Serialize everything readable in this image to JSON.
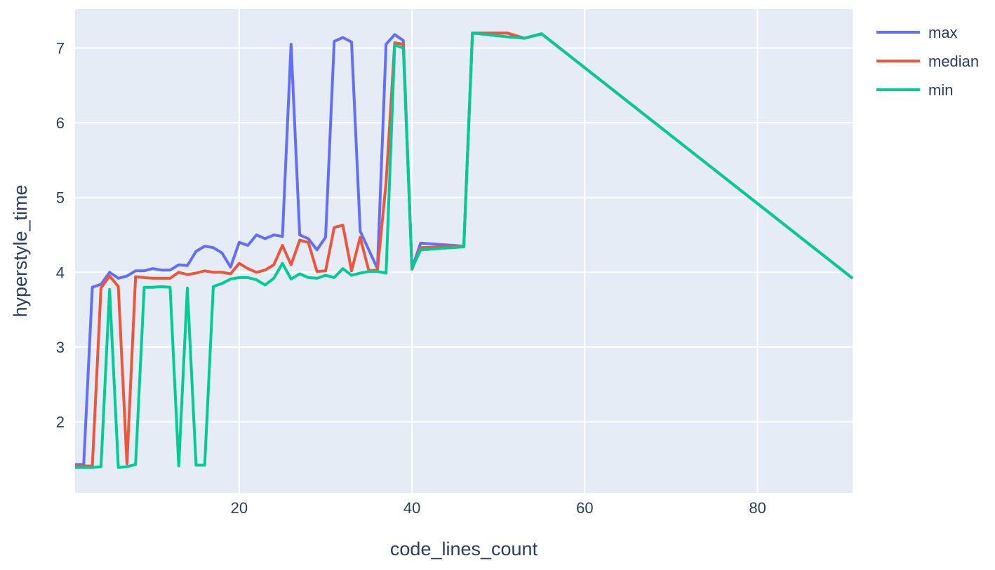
{
  "chart_data": {
    "type": "line",
    "xlabel": "code_lines_count",
    "ylabel": "hyperstyle_time",
    "xlim": [
      1,
      91
    ],
    "ylim": [
      1.05,
      7.52
    ],
    "x_ticks": [
      20,
      40,
      60,
      80
    ],
    "y_ticks": [
      2,
      3,
      4,
      5,
      6,
      7
    ],
    "grid": true,
    "legend_position": "top-right",
    "background_color": "#e5ecf6",
    "grid_color": "#ffffff",
    "series": [
      {
        "name": "max",
        "color": "#636efa",
        "x": [
          1,
          2,
          3,
          4,
          5,
          6,
          7,
          8,
          9,
          10,
          11,
          12,
          13,
          14,
          15,
          16,
          17,
          18,
          19,
          20,
          21,
          22,
          23,
          24,
          25,
          26,
          27,
          28,
          29,
          30,
          31,
          32,
          33,
          34,
          35,
          36,
          37,
          38,
          39,
          40,
          41,
          46,
          47,
          51,
          53,
          55,
          91
        ],
        "y": [
          1.43,
          1.43,
          3.8,
          3.84,
          4.0,
          3.92,
          3.95,
          4.02,
          4.02,
          4.05,
          4.03,
          4.03,
          4.1,
          4.09,
          4.28,
          4.35,
          4.33,
          4.26,
          4.07,
          4.4,
          4.36,
          4.5,
          4.45,
          4.5,
          4.48,
          7.05,
          4.5,
          4.45,
          4.3,
          4.47,
          7.09,
          7.14,
          7.08,
          4.55,
          4.3,
          4.05,
          7.05,
          7.18,
          7.1,
          4.05,
          4.39,
          4.35,
          7.2,
          7.2,
          7.13,
          7.19,
          3.92
        ]
      },
      {
        "name": "median",
        "color": "#ef553b",
        "x": [
          1,
          2,
          3,
          4,
          5,
          6,
          7,
          8,
          9,
          10,
          11,
          12,
          13,
          14,
          15,
          16,
          17,
          18,
          19,
          20,
          21,
          22,
          23,
          24,
          25,
          26,
          27,
          28,
          29,
          30,
          31,
          32,
          33,
          34,
          35,
          36,
          37,
          38,
          39,
          40,
          41,
          46,
          47,
          51,
          53,
          55,
          91
        ],
        "y": [
          1.41,
          1.41,
          1.41,
          3.79,
          3.95,
          3.81,
          1.44,
          3.94,
          3.93,
          3.92,
          3.92,
          3.92,
          4.0,
          3.97,
          3.99,
          4.02,
          4.0,
          4.0,
          3.98,
          4.12,
          4.05,
          4.0,
          4.03,
          4.1,
          4.36,
          4.1,
          4.43,
          4.4,
          4.01,
          4.02,
          4.6,
          4.63,
          4.02,
          4.47,
          4.02,
          4.03,
          5.2,
          7.07,
          7.05,
          4.04,
          4.33,
          4.35,
          7.2,
          7.2,
          7.13,
          7.19,
          3.92
        ]
      },
      {
        "name": "min",
        "color": "#00cc96",
        "x": [
          1,
          2,
          3,
          4,
          5,
          6,
          7,
          8,
          9,
          10,
          11,
          12,
          13,
          14,
          15,
          16,
          17,
          18,
          19,
          20,
          21,
          22,
          23,
          24,
          25,
          26,
          27,
          28,
          29,
          30,
          31,
          32,
          33,
          34,
          35,
          36,
          37,
          38,
          39,
          40,
          41,
          46,
          47,
          51,
          53,
          55,
          91
        ],
        "y": [
          1.39,
          1.39,
          1.39,
          1.4,
          3.77,
          1.39,
          1.4,
          1.43,
          3.8,
          3.8,
          3.81,
          3.8,
          1.41,
          3.79,
          1.42,
          1.42,
          3.81,
          3.85,
          3.91,
          3.93,
          3.93,
          3.9,
          3.83,
          3.92,
          4.12,
          3.91,
          3.98,
          3.93,
          3.92,
          3.96,
          3.93,
          4.05,
          3.96,
          3.99,
          4.01,
          4.01,
          3.99,
          7.04,
          7.0,
          4.05,
          4.3,
          4.34,
          7.2,
          7.15,
          7.13,
          7.19,
          3.92
        ]
      }
    ]
  }
}
